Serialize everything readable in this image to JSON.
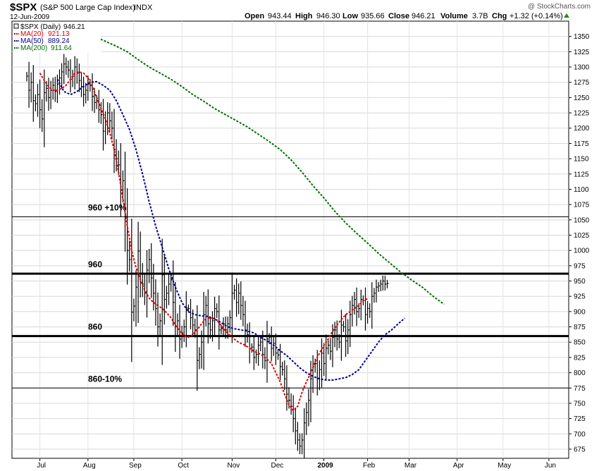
{
  "header": {
    "symbol": "$SPX",
    "name": "(S&P 500 Large Cap Index)",
    "exchange": "INDX",
    "date": "12-Jun-2009",
    "watermark": "@ StockCharts.com",
    "open_label": "Open",
    "open": "943.44",
    "high_label": "High",
    "high": "946.30",
    "low_label": "Low",
    "low": "935.66",
    "close_label": "Close",
    "close": "946.21",
    "volume_label": "Volume",
    "volume": "3.7B",
    "chg_label": "Chg",
    "chg": "+1.32 (+0.14%)"
  },
  "legend": [
    {
      "label": "$SPX (Daily)",
      "value": "946.21",
      "color": "#000000"
    },
    {
      "label": "MA(20)",
      "value": "921.13",
      "color": "#e00000"
    },
    {
      "label": "MA(50)",
      "value": "889.24",
      "color": "#000090"
    },
    {
      "label": "MA(200)",
      "value": "911.64",
      "color": "#007000"
    }
  ],
  "annotations": [
    {
      "text": "960 +10%",
      "level": 1055,
      "bold": false
    },
    {
      "text": "960",
      "level": 962,
      "bold": true
    },
    {
      "text": "860",
      "level": 860,
      "bold": true
    },
    {
      "text": "860-10%",
      "level": 775,
      "bold": false
    }
  ],
  "chart_data": {
    "type": "line",
    "ylim": [
      660,
      1375
    ],
    "y_ticks": [
      675,
      700,
      725,
      750,
      775,
      800,
      825,
      850,
      875,
      900,
      925,
      950,
      975,
      1000,
      1025,
      1050,
      1075,
      1100,
      1125,
      1150,
      1175,
      1200,
      1225,
      1250,
      1275,
      1300,
      1325,
      1350
    ],
    "x_ticks": [
      {
        "label": "Jul",
        "t": 6,
        "bold": false
      },
      {
        "label": "Aug",
        "t": 28,
        "bold": false
      },
      {
        "label": "Sep",
        "t": 49,
        "bold": false
      },
      {
        "label": "Oct",
        "t": 71,
        "bold": false
      },
      {
        "label": "Nov",
        "t": 94,
        "bold": false
      },
      {
        "label": "Dec",
        "t": 114,
        "bold": false
      },
      {
        "label": "2009",
        "t": 136,
        "bold": true
      },
      {
        "label": "Feb",
        "t": 156,
        "bold": false
      },
      {
        "label": "Mar",
        "t": 175,
        "bold": false
      },
      {
        "label": "Apr",
        "t": 197,
        "bold": false
      },
      {
        "label": "May",
        "t": 218,
        "bold": false
      },
      {
        "label": "Jun",
        "t": 239,
        "bold": false
      }
    ],
    "price_closes": [
      1285,
      1262,
      1275,
      1245,
      1240,
      1255,
      1230,
      1215,
      1258,
      1265,
      1250,
      1262,
      1270,
      1260,
      1272,
      1282,
      1292,
      1305,
      1300,
      1295,
      1280,
      1285,
      1300,
      1290,
      1278,
      1268,
      1255,
      1262,
      1272,
      1270,
      1252,
      1242,
      1245,
      1230,
      1222,
      1195,
      1210,
      1225,
      1212,
      1200,
      1165,
      1150,
      1140,
      1099,
      1114,
      1056,
      1000,
      985,
      899,
      909,
      940,
      999,
      962,
      945,
      930,
      968,
      985,
      955,
      930,
      905,
      875,
      885,
      960,
      920,
      930,
      945,
      952,
      915,
      875,
      885,
      855,
      865,
      875,
      906,
      905,
      890,
      878,
      870,
      820,
      830,
      850,
      895,
      910,
      880,
      870,
      885,
      905,
      900,
      870,
      872,
      880,
      870,
      880,
      890,
      930,
      935,
      915,
      930,
      910,
      895,
      870,
      862,
      840,
      842,
      825,
      830,
      845,
      850,
      830,
      820,
      855,
      858,
      840,
      848,
      832,
      829,
      810,
      805,
      790,
      765,
      755,
      745,
      725,
      705,
      690,
      680,
      690,
      718,
      735,
      755,
      790,
      810,
      815,
      790,
      805,
      832,
      815,
      840,
      845,
      835,
      858,
      870,
      855,
      850,
      878,
      875,
      852,
      870,
      895,
      910,
      920,
      900,
      905,
      920,
      918,
      895,
      905,
      900,
      925,
      930,
      940,
      942,
      945,
      950,
      945,
      946
    ],
    "ma20": [
      1290,
      1278,
      1268,
      1262,
      1262,
      1265,
      1270,
      1280,
      1290,
      1292,
      1290,
      1282,
      1268,
      1250,
      1232,
      1215,
      1192,
      1165,
      1128,
      1085,
      1040,
      1000,
      972,
      952,
      935,
      922,
      915,
      910,
      905,
      898,
      890,
      878,
      868,
      860,
      858,
      862,
      870,
      880,
      888,
      890,
      888,
      882,
      872,
      865,
      858,
      852,
      848,
      845,
      840,
      835,
      832,
      828,
      822,
      815,
      800,
      785,
      765,
      748,
      738,
      745,
      768,
      785,
      800,
      818,
      832,
      845,
      855,
      868,
      878,
      887,
      895,
      900,
      905,
      910,
      918,
      921
    ],
    "ma20_start": 6,
    "ma50": [
      1280,
      1260,
      1255,
      1260,
      1268,
      1275,
      1276,
      1270,
      1262,
      1245,
      1222,
      1198,
      1165,
      1125,
      1080,
      1040,
      1005,
      970,
      940,
      915,
      900,
      895,
      893,
      892,
      888,
      882,
      875,
      872,
      870,
      868,
      865,
      858,
      852,
      845,
      836,
      828,
      818,
      808,
      800,
      794,
      790,
      788,
      788,
      790,
      792,
      797,
      805,
      820,
      835,
      850,
      862,
      870,
      880,
      889
    ],
    "ma50_start": 14,
    "ma200": [
      1372,
      1365,
      1358,
      1350,
      1342,
      1334,
      1325,
      1312,
      1300,
      1290,
      1280,
      1268,
      1255,
      1244,
      1232,
      1222,
      1212,
      1202,
      1190,
      1178,
      1165,
      1148,
      1128,
      1106,
      1086,
      1064,
      1045,
      1028,
      1012,
      995,
      980,
      965,
      952,
      940,
      925,
      912
    ],
    "ma200_start": 16,
    "colors": {
      "price": "#000000",
      "ma20": "#e00000",
      "ma50": "#000090",
      "ma200": "#007000"
    }
  }
}
